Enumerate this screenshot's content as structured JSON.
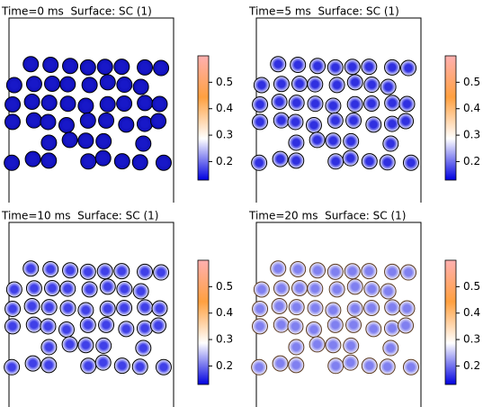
{
  "chart_data": [
    {
      "type": "surface",
      "title": "Time=0 ms  Surface: SC (1)",
      "clim": [
        0.13,
        0.6
      ],
      "cticks": [
        0.2,
        0.3,
        0.4,
        0.5
      ],
      "colormap": [
        "#0000e0",
        "#ffffff",
        "#ffa040",
        "#ffb0b0"
      ],
      "particle_colors": [
        "#1818c8",
        "#1010b8"
      ],
      "edge_color": "#000000"
    },
    {
      "type": "surface",
      "title": "Time=5 ms  Surface: SC (1)",
      "clim": [
        0.13,
        0.6
      ],
      "cticks": [
        0.2,
        0.3,
        0.4,
        0.5
      ],
      "colormap": [
        "#0000e0",
        "#ffffff",
        "#ffa040",
        "#ffb0b0"
      ],
      "particle_colors": [
        "#3030e0",
        "#e8e8ff"
      ],
      "edge_color": "#000000"
    },
    {
      "type": "surface",
      "title": "Time=10 ms  Surface: SC (1)",
      "clim": [
        0.13,
        0.6
      ],
      "cticks": [
        0.2,
        0.3,
        0.4,
        0.5
      ],
      "colormap": [
        "#0000e0",
        "#ffffff",
        "#ffa040",
        "#ffb0b0"
      ],
      "particle_colors": [
        "#4040e8",
        "#f0f0ff"
      ],
      "edge_color": "#000000"
    },
    {
      "type": "surface",
      "title": "Time=20 ms  Surface: SC (1)",
      "clim": [
        0.13,
        0.6
      ],
      "cticks": [
        0.2,
        0.3,
        0.4,
        0.5
      ],
      "colormap": [
        "#0000e0",
        "#ffffff",
        "#ffa040",
        "#ffb0b0"
      ],
      "particle_colors": [
        "#8080f0",
        "#f4f0f8"
      ],
      "edge_color": "#5a3a20"
    }
  ]
}
